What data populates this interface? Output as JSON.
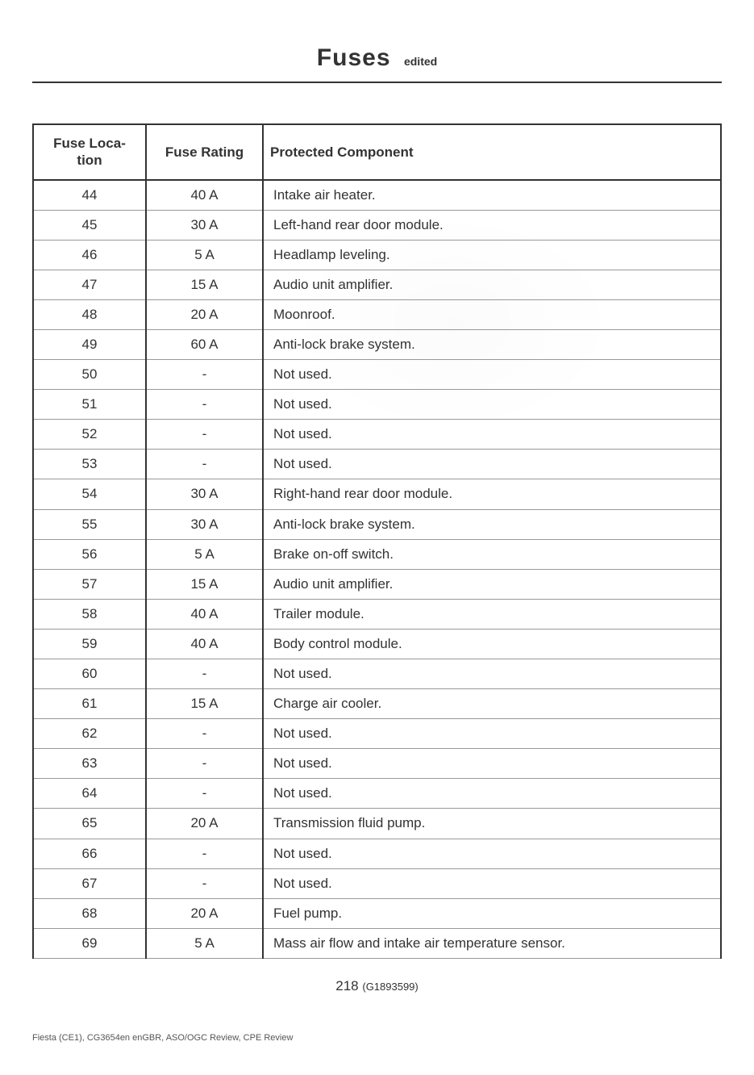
{
  "header": {
    "title": "Fuses",
    "subtitle": "edited"
  },
  "table": {
    "columns": [
      {
        "key": "location",
        "label": "Fuse Loca-\ntion",
        "class": "col-loc"
      },
      {
        "key": "rating",
        "label": "Fuse Rating",
        "class": "col-rat"
      },
      {
        "key": "component",
        "label": "Protected Component",
        "class": "col-comp"
      }
    ],
    "rows": [
      {
        "location": "44",
        "rating": "40 A",
        "component": "Intake air heater."
      },
      {
        "location": "45",
        "rating": "30 A",
        "component": "Left-hand rear door module."
      },
      {
        "location": "46",
        "rating": "5 A",
        "component": "Headlamp leveling."
      },
      {
        "location": "47",
        "rating": "15 A",
        "component": "Audio unit amplifier."
      },
      {
        "location": "48",
        "rating": "20 A",
        "component": "Moonroof."
      },
      {
        "location": "49",
        "rating": "60 A",
        "component": "Anti-lock brake system."
      },
      {
        "location": "50",
        "rating": "-",
        "component": "Not used."
      },
      {
        "location": "51",
        "rating": "-",
        "component": "Not used."
      },
      {
        "location": "52",
        "rating": "-",
        "component": "Not used."
      },
      {
        "location": "53",
        "rating": "-",
        "component": "Not used."
      },
      {
        "location": "54",
        "rating": "30 A",
        "component": "Right-hand rear door module."
      },
      {
        "location": "55",
        "rating": "30 A",
        "component": "Anti-lock brake system."
      },
      {
        "location": "56",
        "rating": "5 A",
        "component": "Brake on-off switch."
      },
      {
        "location": "57",
        "rating": "15 A",
        "component": "Audio unit amplifier."
      },
      {
        "location": "58",
        "rating": "40 A",
        "component": "Trailer module."
      },
      {
        "location": "59",
        "rating": "40 A",
        "component": "Body control module."
      },
      {
        "location": "60",
        "rating": "-",
        "component": "Not used."
      },
      {
        "location": "61",
        "rating": "15 A",
        "component": "Charge air cooler."
      },
      {
        "location": "62",
        "rating": "-",
        "component": "Not used."
      },
      {
        "location": "63",
        "rating": "-",
        "component": "Not used."
      },
      {
        "location": "64",
        "rating": "-",
        "component": "Not used."
      },
      {
        "location": "65",
        "rating": "20 A",
        "component": "Transmission fluid pump."
      },
      {
        "location": "66",
        "rating": "-",
        "component": "Not used."
      },
      {
        "location": "67",
        "rating": "-",
        "component": "Not used."
      },
      {
        "location": "68",
        "rating": "20 A",
        "component": "Fuel pump."
      },
      {
        "location": "69",
        "rating": "5 A",
        "component": "Mass air flow and intake air temperature sensor."
      }
    ]
  },
  "footer": {
    "page_number": "218",
    "doc_id": "(G1893599)",
    "footer_line": "Fiesta (CE1), CG3654en enGBR, ASO/OGC Review, CPE Review"
  },
  "style": {
    "page_bg": "#ffffff",
    "text_color": "#333333",
    "border_color": "#333333",
    "row_divider_color": "#999999",
    "title_fontsize": 30,
    "th_fontsize": 17,
    "td_fontsize": 17
  }
}
